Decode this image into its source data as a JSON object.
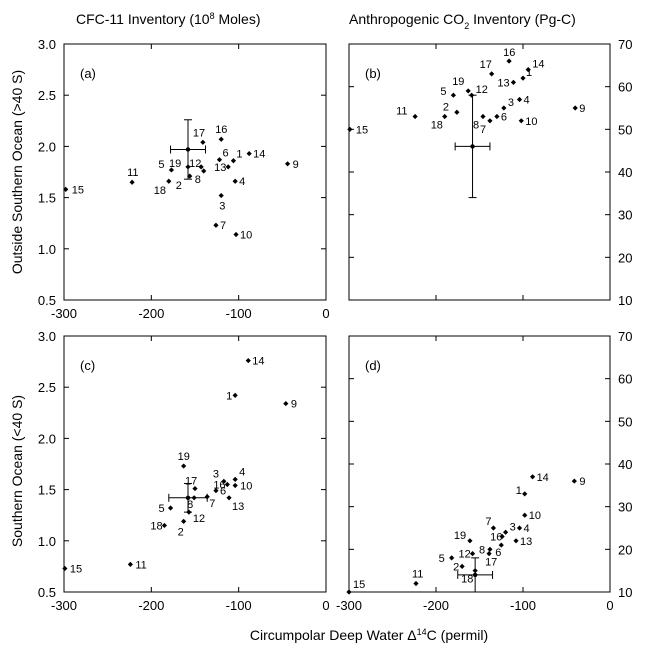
{
  "titles": {
    "left_prefix": "CFC-11 Inventory (10",
    "left_sup": "8",
    "left_suffix": " Moles)",
    "right_prefix": "Anthropogenic CO",
    "right_sub": "2",
    "right_suffix": " Inventory (Pg-C)"
  },
  "ylabels": {
    "top": "Outside Southern Ocean (>40 S)",
    "bottom": "Southern Ocean (<40 S)"
  },
  "xlabel": {
    "prefix": "Circumpolar Deep Water Δ",
    "sup": "14",
    "suffix": "C (permil)"
  },
  "chart_data": [
    {
      "type": "scatter",
      "panel": "(a)",
      "xlim": [
        -300,
        0
      ],
      "ylim": [
        0.5,
        3.0
      ],
      "xticks": [
        "-300",
        "-200",
        "-100",
        "0"
      ],
      "yticks": [
        "0.5",
        "1.0",
        "1.5",
        "2.0",
        "2.5",
        "3.0"
      ],
      "points": [
        {
          "label": "1",
          "x": -106,
          "y": 1.86
        },
        {
          "label": "2",
          "x": -156,
          "y": 1.71
        },
        {
          "label": "3",
          "x": -120,
          "y": 1.52
        },
        {
          "label": "4",
          "x": -104,
          "y": 1.66
        },
        {
          "label": "5",
          "x": -177,
          "y": 1.77
        },
        {
          "label": "6",
          "x": -122,
          "y": 1.87
        },
        {
          "label": "7",
          "x": -126,
          "y": 1.23
        },
        {
          "label": "8",
          "x": -140,
          "y": 1.76
        },
        {
          "label": "9",
          "x": -44,
          "y": 1.83
        },
        {
          "label": "10",
          "x": -103,
          "y": 1.14
        },
        {
          "label": "11",
          "x": -222,
          "y": 1.65
        },
        {
          "label": "12",
          "x": -143,
          "y": 1.8
        },
        {
          "label": "13",
          "x": -112,
          "y": 1.8
        },
        {
          "label": "14",
          "x": -88,
          "y": 1.93
        },
        {
          "label": "15",
          "x": -298,
          "y": 1.58
        },
        {
          "label": "16",
          "x": -120,
          "y": 2.07
        },
        {
          "label": "17",
          "x": -141,
          "y": 2.04
        },
        {
          "label": "18",
          "x": -180,
          "y": 1.66
        },
        {
          "label": "19",
          "x": -158,
          "y": 1.8
        }
      ],
      "errorbar": {
        "x": -158,
        "y": 1.97,
        "xerr": 20,
        "yerr_low": 0.29,
        "yerr_high": 0.29
      }
    },
    {
      "type": "scatter",
      "panel": "(b)",
      "xlim": [
        -300,
        0
      ],
      "ylim": [
        10,
        70
      ],
      "xticks": [],
      "yticks": [
        "10",
        "20",
        "30",
        "40",
        "50",
        "60",
        "70"
      ],
      "points": [
        {
          "label": "1",
          "x": -100,
          "y": 62
        },
        {
          "label": "2",
          "x": -176,
          "y": 54
        },
        {
          "label": "3",
          "x": -122,
          "y": 55
        },
        {
          "label": "4",
          "x": -104,
          "y": 57
        },
        {
          "label": "5",
          "x": -180,
          "y": 58
        },
        {
          "label": "6",
          "x": -130,
          "y": 53
        },
        {
          "label": "7",
          "x": -138,
          "y": 52
        },
        {
          "label": "8",
          "x": -146,
          "y": 53
        },
        {
          "label": "9",
          "x": -40,
          "y": 55
        },
        {
          "label": "10",
          "x": -102,
          "y": 52
        },
        {
          "label": "11",
          "x": -224,
          "y": 53
        },
        {
          "label": "12",
          "x": -159,
          "y": 58
        },
        {
          "label": "13",
          "x": -111,
          "y": 61
        },
        {
          "label": "14",
          "x": -94,
          "y": 64
        },
        {
          "label": "15",
          "x": -299,
          "y": 50
        },
        {
          "label": "16",
          "x": -116,
          "y": 66
        },
        {
          "label": "17",
          "x": -136,
          "y": 63
        },
        {
          "label": "18",
          "x": -190,
          "y": 53
        },
        {
          "label": "19",
          "x": -163,
          "y": 59
        }
      ],
      "errorbar": {
        "x": -158,
        "y": 46,
        "xerr": 20,
        "yerr_low": 12,
        "yerr_high": 12
      }
    },
    {
      "type": "scatter",
      "panel": "(c)",
      "xlim": [
        -300,
        0
      ],
      "ylim": [
        0.5,
        3.0
      ],
      "xticks": [
        "-300",
        "-200",
        "-100",
        "0"
      ],
      "yticks": [
        "0.5",
        "1.0",
        "1.5",
        "2.0",
        "2.5",
        "3.0"
      ],
      "points": [
        {
          "label": "1",
          "x": -104,
          "y": 2.42
        },
        {
          "label": "2",
          "x": -163,
          "y": 1.19
        },
        {
          "label": "3",
          "x": -117,
          "y": 1.58
        },
        {
          "label": "4",
          "x": -104,
          "y": 1.6
        },
        {
          "label": "5",
          "x": -178,
          "y": 1.32
        },
        {
          "label": "6",
          "x": -126,
          "y": 1.49
        },
        {
          "label": "7",
          "x": -136,
          "y": 1.43
        },
        {
          "label": "8",
          "x": -151,
          "y": 1.42
        },
        {
          "label": "9",
          "x": -46,
          "y": 2.34
        },
        {
          "label": "10",
          "x": -104,
          "y": 1.54
        },
        {
          "label": "11",
          "x": -224,
          "y": 0.77
        },
        {
          "label": "12",
          "x": -157,
          "y": 1.28
        },
        {
          "label": "13",
          "x": -111,
          "y": 1.42
        },
        {
          "label": "14",
          "x": -89,
          "y": 2.76
        },
        {
          "label": "15",
          "x": -299,
          "y": 0.73
        },
        {
          "label": "16",
          "x": -113,
          "y": 1.55
        },
        {
          "label": "17",
          "x": -150,
          "y": 1.51
        },
        {
          "label": "18",
          "x": -185,
          "y": 1.15
        },
        {
          "label": "19",
          "x": -163,
          "y": 1.73
        }
      ],
      "errorbar": {
        "x": -158,
        "y": 1.42,
        "xerr": 22,
        "yerr_low": 0.14,
        "yerr_high": 0.14
      }
    },
    {
      "type": "scatter",
      "panel": "(d)",
      "xlim": [
        -300,
        0
      ],
      "ylim": [
        10,
        70
      ],
      "xticks": [
        "-300",
        "-200",
        "-100",
        "0"
      ],
      "yticks": [
        "10",
        "20",
        "30",
        "40",
        "50",
        "60",
        "70"
      ],
      "points": [
        {
          "label": "1",
          "x": -98,
          "y": 33
        },
        {
          "label": "2",
          "x": -170,
          "y": 16
        },
        {
          "label": "3",
          "x": -120,
          "y": 24
        },
        {
          "label": "4",
          "x": -104,
          "y": 25
        },
        {
          "label": "5",
          "x": -182,
          "y": 18
        },
        {
          "label": "6",
          "x": -125,
          "y": 21
        },
        {
          "label": "7",
          "x": -134,
          "y": 25
        },
        {
          "label": "8",
          "x": -138,
          "y": 20
        },
        {
          "label": "9",
          "x": -41,
          "y": 36
        },
        {
          "label": "10",
          "x": -98,
          "y": 28
        },
        {
          "label": "11",
          "x": -223,
          "y": 12
        },
        {
          "label": "12",
          "x": -158,
          "y": 19
        },
        {
          "label": "13",
          "x": -108,
          "y": 22
        },
        {
          "label": "14",
          "x": -89,
          "y": 37
        },
        {
          "label": "15",
          "x": -300,
          "y": 10
        },
        {
          "label": "16",
          "x": -124,
          "y": 23
        },
        {
          "label": "17",
          "x": -139,
          "y": 19
        },
        {
          "label": "18",
          "x": -155,
          "y": 15
        },
        {
          "label": "19",
          "x": -161,
          "y": 22
        }
      ],
      "errorbar": {
        "x": -155,
        "y": 14,
        "xerr": 20,
        "yerr_low": 4,
        "yerr_high": 4
      }
    }
  ]
}
